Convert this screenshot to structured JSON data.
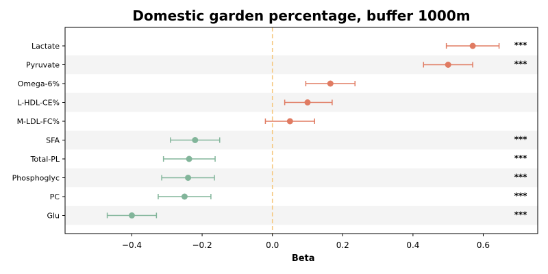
{
  "chart_data": {
    "type": "forest",
    "title": "Domestic garden percentage, buffer 1000m",
    "xlabel": "Beta",
    "xlim": [
      -0.59,
      0.755
    ],
    "xticks": [
      -0.4,
      -0.2,
      0.0,
      0.2,
      0.4,
      0.6
    ],
    "xtick_labels": [
      "−0.4",
      "−0.2",
      "0.0",
      "0.2",
      "0.4",
      "0.6"
    ],
    "reference_line": 0,
    "reference_line_color": "#f5c77e",
    "positive_color": "#e07b62",
    "negative_color": "#82b59a",
    "band_color": "#f4f4f4",
    "grid": false,
    "rows": [
      {
        "label": "Lactate",
        "beta": 0.57,
        "lower": 0.495,
        "upper": 0.645,
        "sig": "***"
      },
      {
        "label": "Pyruvate",
        "beta": 0.5,
        "lower": 0.43,
        "upper": 0.57,
        "sig": "***"
      },
      {
        "label": "Omega-6%",
        "beta": 0.165,
        "lower": 0.095,
        "upper": 0.235,
        "sig": ""
      },
      {
        "label": "L-HDL-CE%",
        "beta": 0.1,
        "lower": 0.035,
        "upper": 0.17,
        "sig": ""
      },
      {
        "label": "M-LDL-FC%",
        "beta": 0.05,
        "lower": -0.02,
        "upper": 0.12,
        "sig": ""
      },
      {
        "label": "SFA",
        "beta": -0.22,
        "lower": -0.29,
        "upper": -0.15,
        "sig": "***"
      },
      {
        "label": "Total-PL",
        "beta": -0.237,
        "lower": -0.31,
        "upper": -0.163,
        "sig": "***"
      },
      {
        "label": "Phosphoglyc",
        "beta": -0.24,
        "lower": -0.315,
        "upper": -0.165,
        "sig": "***"
      },
      {
        "label": "PC",
        "beta": -0.25,
        "lower": -0.325,
        "upper": -0.175,
        "sig": "***"
      },
      {
        "label": "Glu",
        "beta": -0.4,
        "lower": -0.47,
        "upper": -0.33,
        "sig": "***"
      }
    ]
  }
}
